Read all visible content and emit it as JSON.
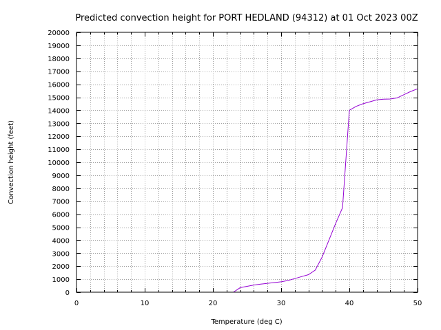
{
  "chart_data": {
    "type": "line",
    "title": "Predicted convection height for PORT HEDLAND (94312) at 01 Oct 2023 00Z",
    "xlabel": "Temperature (deg C)",
    "ylabel": "Convection height (feet)",
    "xlim": [
      0,
      50
    ],
    "ylim": [
      0,
      20000
    ],
    "x_ticks": [
      0,
      10,
      20,
      30,
      40,
      50
    ],
    "y_ticks": [
      0,
      1000,
      2000,
      3000,
      4000,
      5000,
      6000,
      7000,
      8000,
      9000,
      10000,
      11000,
      12000,
      13000,
      14000,
      15000,
      16000,
      17000,
      18000,
      19000,
      20000
    ],
    "grid": true,
    "grid_x_step": 2,
    "grid_y_step": 1000,
    "line_color": "#9400d3",
    "series": [
      {
        "x": [
          23.0,
          24.0,
          25.0,
          26.0,
          27.0,
          28.0,
          29.0,
          30.0,
          31.0,
          32.0,
          33.0,
          34.0,
          35.0,
          36.0,
          37.0,
          38.0,
          39.0,
          40.0,
          41.0,
          42.0,
          43.0,
          44.0,
          45.0,
          46.0,
          47.0,
          48.0,
          49.0,
          50.0
        ],
        "y": [
          0,
          350,
          450,
          550,
          620,
          680,
          740,
          800,
          900,
          1050,
          1200,
          1350,
          1700,
          2700,
          4000,
          5300,
          6500,
          14000,
          14300,
          14500,
          14650,
          14800,
          14850,
          14870,
          14950,
          15200,
          15450,
          15650
        ]
      }
    ]
  }
}
